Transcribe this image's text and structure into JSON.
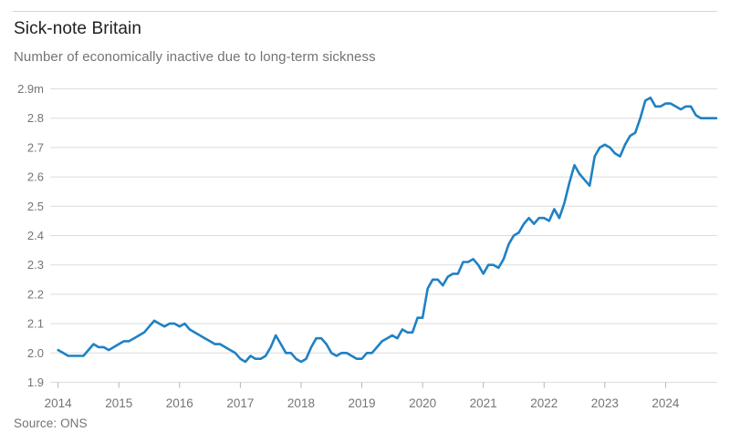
{
  "header": {
    "title": "Sick-note Britain",
    "subtitle": "Number of economically inactive due to long-term sickness"
  },
  "footer": {
    "source": "Source: ONS"
  },
  "colors": {
    "line": "#1f81c4",
    "grid": "#dcdcdc",
    "tick": "#b3b3b3",
    "axis_text": "#757575",
    "title_text": "#1f1f1f",
    "muted_text": "#737373",
    "rule": "#d5d5d5",
    "background": "#ffffff"
  },
  "chart_data": {
    "type": "line",
    "title": "Sick-note Britain",
    "subtitle": "Number of economically inactive due to long-term sickness",
    "source": "Source: ONS",
    "unit": "millions of people",
    "grid": "horizontal",
    "legend": "none",
    "ylim": [
      1.9,
      2.9
    ],
    "xlim": [
      2013.87,
      2024.85
    ],
    "y_ticks": [
      {
        "value": 2.9,
        "label": "2.9m"
      },
      {
        "value": 2.8,
        "label": "2.8"
      },
      {
        "value": 2.7,
        "label": "2.7"
      },
      {
        "value": 2.6,
        "label": "2.6"
      },
      {
        "value": 2.5,
        "label": "2.5"
      },
      {
        "value": 2.4,
        "label": "2.4"
      },
      {
        "value": 2.3,
        "label": "2.3"
      },
      {
        "value": 2.2,
        "label": "2.2"
      },
      {
        "value": 2.1,
        "label": "2.1"
      },
      {
        "value": 2.0,
        "label": "2.0"
      },
      {
        "value": 1.9,
        "label": "1.9"
      }
    ],
    "x_ticks": [
      {
        "value": 2014,
        "label": "2014"
      },
      {
        "value": 2015,
        "label": "2015"
      },
      {
        "value": 2016,
        "label": "2016"
      },
      {
        "value": 2017,
        "label": "2017"
      },
      {
        "value": 2018,
        "label": "2018"
      },
      {
        "value": 2019,
        "label": "2019"
      },
      {
        "value": 2020,
        "label": "2020"
      },
      {
        "value": 2021,
        "label": "2021"
      },
      {
        "value": 2022,
        "label": "2022"
      },
      {
        "value": 2023,
        "label": "2023"
      },
      {
        "value": 2024,
        "label": "2024"
      }
    ],
    "series": [
      {
        "name": "Economically inactive due to long-term sickness",
        "x_start_year": 2014.0,
        "x_step_years": 0.083333,
        "values": [
          2.01,
          2.0,
          1.99,
          1.99,
          1.99,
          1.99,
          2.01,
          2.03,
          2.02,
          2.02,
          2.01,
          2.02,
          2.03,
          2.04,
          2.04,
          2.05,
          2.06,
          2.07,
          2.09,
          2.11,
          2.1,
          2.09,
          2.1,
          2.1,
          2.09,
          2.1,
          2.08,
          2.07,
          2.06,
          2.05,
          2.04,
          2.03,
          2.03,
          2.02,
          2.01,
          2.0,
          1.98,
          1.97,
          1.99,
          1.98,
          1.98,
          1.99,
          2.02,
          2.06,
          2.03,
          2.0,
          2.0,
          1.98,
          1.97,
          1.98,
          2.02,
          2.05,
          2.05,
          2.03,
          2.0,
          1.99,
          2.0,
          2.0,
          1.99,
          1.98,
          1.98,
          2.0,
          2.0,
          2.02,
          2.04,
          2.05,
          2.06,
          2.05,
          2.08,
          2.07,
          2.07,
          2.12,
          2.12,
          2.22,
          2.25,
          2.25,
          2.23,
          2.26,
          2.27,
          2.27,
          2.31,
          2.31,
          2.32,
          2.3,
          2.27,
          2.3,
          2.3,
          2.29,
          2.32,
          2.37,
          2.4,
          2.41,
          2.44,
          2.46,
          2.44,
          2.46,
          2.46,
          2.45,
          2.49,
          2.46,
          2.51,
          2.58,
          2.64,
          2.61,
          2.59,
          2.57,
          2.67,
          2.7,
          2.71,
          2.7,
          2.68,
          2.67,
          2.71,
          2.74,
          2.75,
          2.8,
          2.86,
          2.87,
          2.84,
          2.84,
          2.85,
          2.85,
          2.84,
          2.83,
          2.84,
          2.84,
          2.81,
          2.8,
          2.8,
          2.8,
          2.8
        ]
      }
    ]
  }
}
